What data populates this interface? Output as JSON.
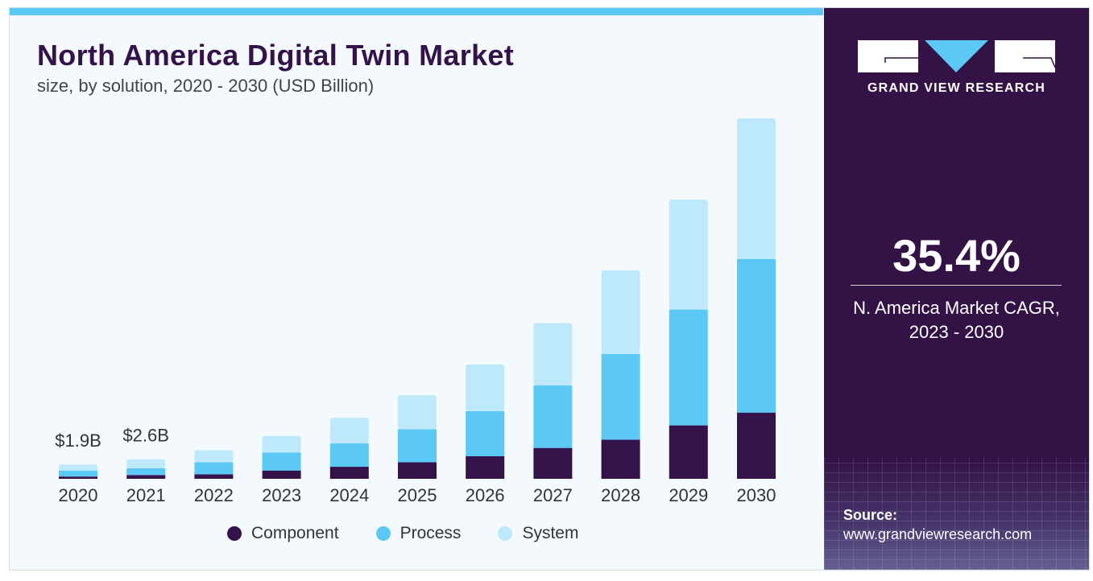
{
  "header": {
    "title": "North America Digital Twin Market",
    "subtitle": "size, by solution, 2020 - 2030 (USD Billion)"
  },
  "side": {
    "brand": "GRAND VIEW RESEARCH",
    "cagr": "35.4%",
    "cagr_label_1": "N. America Market CAGR,",
    "cagr_label_2": "2023 - 2030",
    "source_label": "Source:",
    "source_url": "www.grandviewresearch.com"
  },
  "colors": {
    "Component": "#33134a",
    "Process": "#5bc8f5",
    "System": "#bde9fa",
    "panel": "#331246",
    "accent": "#5bc8f5"
  },
  "chart_data": {
    "type": "bar",
    "stacked": true,
    "title": "North America Digital Twin Market",
    "subtitle": "size, by solution, 2020 - 2030 (USD Billion)",
    "categories": [
      "2020",
      "2021",
      "2022",
      "2023",
      "2024",
      "2025",
      "2026",
      "2027",
      "2028",
      "2029",
      "2030"
    ],
    "series": [
      {
        "name": "Component",
        "values": [
          0.3,
          0.5,
          0.6,
          1.1,
          1.6,
          2.2,
          3.0,
          4.1,
          5.2,
          7.1,
          8.8
        ]
      },
      {
        "name": "Process",
        "values": [
          0.8,
          0.9,
          1.6,
          2.4,
          3.1,
          4.4,
          6.0,
          8.3,
          11.4,
          15.4,
          20.4
        ]
      },
      {
        "name": "System",
        "values": [
          0.8,
          1.2,
          1.6,
          2.2,
          3.4,
          4.5,
          6.2,
          8.3,
          11.1,
          14.6,
          18.7
        ]
      }
    ],
    "annotations": [
      {
        "category": "2020",
        "text": "$1.9B"
      },
      {
        "category": "2021",
        "text": "$2.6B"
      }
    ],
    "ylim": [
      0,
      50
    ],
    "grid": false,
    "legend": "bottom"
  }
}
